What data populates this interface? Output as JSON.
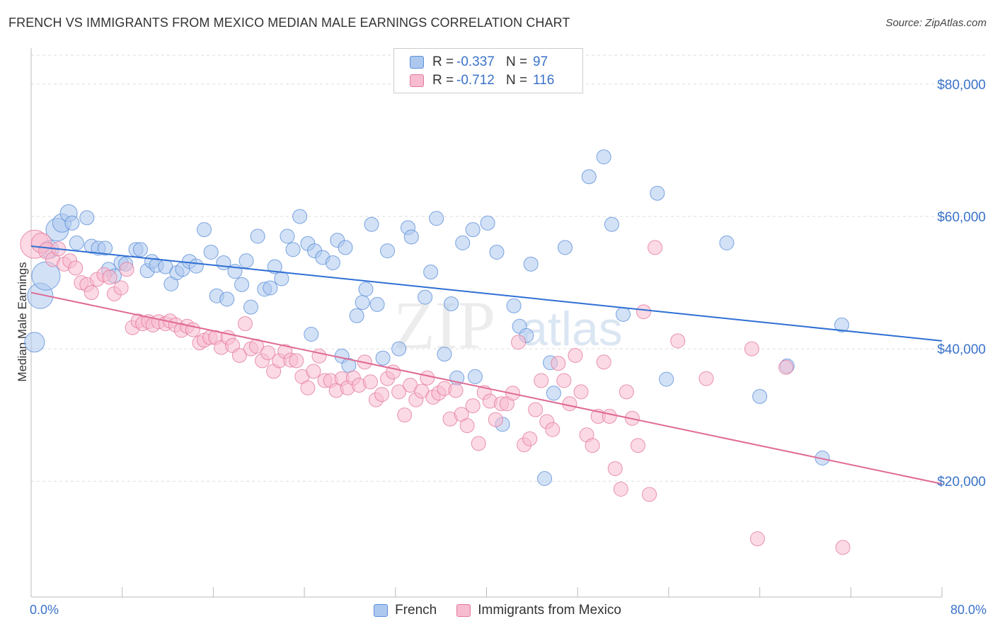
{
  "title": "FRENCH VS IMMIGRANTS FROM MEXICO MEDIAN MALE EARNINGS CORRELATION CHART",
  "source": "Source: ZipAtlas.com",
  "watermark": {
    "zip": "ZIP",
    "atlas": "atlas"
  },
  "legend": [
    {
      "name": "French",
      "r_label": "R =",
      "r_value": "-0.337",
      "n_label": "N =",
      "n_value": "97",
      "fill": "#adc8ef",
      "stroke": "#5b8fd9"
    },
    {
      "name": "Immigrants from Mexico",
      "r_label": "R =",
      "r_value": "-0.712",
      "n_label": "N =",
      "n_value": "116",
      "fill": "#f7bcd0",
      "stroke": "#e3799c"
    }
  ],
  "chart_data": {
    "type": "scatter",
    "title": "FRENCH VS IMMIGRANTS FROM MEXICO MEDIAN MALE EARNINGS CORRELATION CHART",
    "xlabel": "",
    "ylabel": "Median Male Earnings",
    "xlim": [
      0,
      80
    ],
    "ylim": [
      2500,
      85000
    ],
    "x_tick_labels": [
      "0.0%",
      "80.0%"
    ],
    "y_ticks": [
      20000,
      40000,
      60000,
      80000
    ],
    "y_tick_labels": [
      "$20,000",
      "$40,000",
      "$60,000",
      "$80,000"
    ],
    "grid": true,
    "legend_position": "top-center",
    "series": [
      {
        "name": "French",
        "color": "#5b8fd9",
        "trend": {
          "x": [
            0,
            80
          ],
          "y": [
            55500,
            41200
          ]
        },
        "points": [
          [
            0.3,
            41000,
            14
          ],
          [
            0.8,
            48000,
            18
          ],
          [
            1.3,
            51000,
            20
          ],
          [
            1.6,
            55000,
            13
          ],
          [
            2.3,
            58000,
            16
          ],
          [
            2.7,
            59000,
            13
          ],
          [
            3.3,
            60500,
            12
          ],
          [
            3.6,
            59000,
            10
          ],
          [
            4.0,
            56000,
            10
          ],
          [
            4.9,
            59800,
            10
          ],
          [
            5.3,
            55500,
            10
          ],
          [
            5.9,
            55200,
            10
          ],
          [
            6.5,
            55200,
            10
          ],
          [
            6.8,
            52000,
            10
          ],
          [
            7.3,
            51000,
            10
          ],
          [
            7.9,
            53000,
            10
          ],
          [
            8.3,
            52800,
            10
          ],
          [
            9.2,
            55000,
            10
          ],
          [
            9.6,
            55000,
            10
          ],
          [
            10.2,
            51800,
            10
          ],
          [
            10.6,
            53200,
            10
          ],
          [
            11.0,
            52600,
            10
          ],
          [
            11.8,
            52400,
            10
          ],
          [
            12.3,
            49800,
            10
          ],
          [
            12.8,
            51500,
            10
          ],
          [
            13.3,
            52000,
            10
          ],
          [
            13.9,
            53200,
            10
          ],
          [
            14.5,
            52500,
            10
          ],
          [
            15.2,
            58000,
            10
          ],
          [
            15.8,
            54600,
            10
          ],
          [
            16.3,
            48000,
            10
          ],
          [
            16.9,
            53000,
            10
          ],
          [
            17.2,
            47500,
            10
          ],
          [
            17.9,
            51700,
            10
          ],
          [
            18.5,
            49700,
            10
          ],
          [
            18.9,
            53300,
            10
          ],
          [
            19.3,
            46300,
            10
          ],
          [
            19.9,
            57000,
            10
          ],
          [
            20.5,
            49000,
            10
          ],
          [
            21.0,
            49200,
            10
          ],
          [
            21.4,
            52400,
            10
          ],
          [
            22.0,
            50600,
            10
          ],
          [
            22.5,
            57000,
            10
          ],
          [
            23.0,
            55000,
            10
          ],
          [
            23.6,
            60000,
            10
          ],
          [
            24.3,
            55900,
            10
          ],
          [
            24.6,
            42200,
            10
          ],
          [
            24.9,
            54800,
            10
          ],
          [
            25.6,
            53800,
            10
          ],
          [
            26.5,
            53000,
            10
          ],
          [
            26.9,
            56400,
            10
          ],
          [
            27.3,
            38900,
            10
          ],
          [
            27.6,
            55300,
            10
          ],
          [
            27.9,
            37500,
            10
          ],
          [
            28.6,
            45000,
            10
          ],
          [
            29.1,
            47000,
            10
          ],
          [
            29.4,
            49000,
            10
          ],
          [
            29.9,
            58800,
            10
          ],
          [
            30.4,
            46700,
            10
          ],
          [
            30.9,
            38600,
            10
          ],
          [
            31.3,
            54800,
            10
          ],
          [
            32.3,
            40000,
            10
          ],
          [
            33.1,
            58300,
            10
          ],
          [
            33.4,
            56900,
            10
          ],
          [
            34.6,
            47800,
            10
          ],
          [
            35.1,
            51600,
            10
          ],
          [
            35.6,
            59700,
            10
          ],
          [
            36.3,
            39200,
            10
          ],
          [
            36.9,
            46800,
            10
          ],
          [
            37.4,
            35600,
            10
          ],
          [
            37.9,
            56000,
            10
          ],
          [
            38.8,
            58000,
            10
          ],
          [
            39.0,
            35800,
            10
          ],
          [
            40.1,
            59000,
            10
          ],
          [
            40.9,
            54600,
            10
          ],
          [
            41.4,
            28600,
            10
          ],
          [
            42.4,
            46500,
            10
          ],
          [
            42.9,
            43400,
            10
          ],
          [
            43.5,
            42000,
            10
          ],
          [
            43.9,
            52800,
            10
          ],
          [
            45.1,
            20400,
            10
          ],
          [
            45.6,
            37900,
            10
          ],
          [
            45.9,
            33300,
            10
          ],
          [
            46.9,
            55300,
            10
          ],
          [
            49.0,
            66000,
            10
          ],
          [
            50.3,
            69000,
            10
          ],
          [
            51.0,
            58800,
            10
          ],
          [
            52.0,
            45200,
            10
          ],
          [
            55.0,
            63500,
            10
          ],
          [
            55.8,
            35400,
            10
          ],
          [
            61.1,
            56000,
            10
          ],
          [
            64.0,
            32800,
            10
          ],
          [
            66.4,
            37400,
            10
          ],
          [
            69.5,
            23500,
            10
          ],
          [
            71.2,
            43600,
            10
          ]
        ]
      },
      {
        "name": "Immigrants from Mexico",
        "color": "#e3799c",
        "trend": {
          "x": [
            0,
            80
          ],
          "y": [
            48500,
            19600
          ]
        },
        "points": [
          [
            0.3,
            55800,
            20
          ],
          [
            0.9,
            56000,
            14
          ],
          [
            1.4,
            54800,
            12
          ],
          [
            1.9,
            53500,
            10
          ],
          [
            2.4,
            55100,
            10
          ],
          [
            2.9,
            52800,
            10
          ],
          [
            3.4,
            53300,
            10
          ],
          [
            3.9,
            52200,
            10
          ],
          [
            4.4,
            50000,
            10
          ],
          [
            4.9,
            49700,
            10
          ],
          [
            5.3,
            48500,
            10
          ],
          [
            5.8,
            50500,
            10
          ],
          [
            6.4,
            51200,
            10
          ],
          [
            6.9,
            50800,
            10
          ],
          [
            7.3,
            48300,
            10
          ],
          [
            7.9,
            49200,
            10
          ],
          [
            8.4,
            52000,
            10
          ],
          [
            8.9,
            43200,
            10
          ],
          [
            9.4,
            44200,
            10
          ],
          [
            9.8,
            43800,
            10
          ],
          [
            10.3,
            44100,
            10
          ],
          [
            10.7,
            43600,
            10
          ],
          [
            11.2,
            44100,
            10
          ],
          [
            11.8,
            43800,
            10
          ],
          [
            12.2,
            44200,
            10
          ],
          [
            12.7,
            43600,
            10
          ],
          [
            13.2,
            42800,
            10
          ],
          [
            13.7,
            43400,
            10
          ],
          [
            14.2,
            42900,
            10
          ],
          [
            14.8,
            40900,
            10
          ],
          [
            15.2,
            41300,
            10
          ],
          [
            15.7,
            41700,
            10
          ],
          [
            16.2,
            41700,
            10
          ],
          [
            16.7,
            40200,
            10
          ],
          [
            17.3,
            41700,
            10
          ],
          [
            17.7,
            40500,
            10
          ],
          [
            18.3,
            39000,
            10
          ],
          [
            18.8,
            43800,
            10
          ],
          [
            19.3,
            40000,
            10
          ],
          [
            19.8,
            40400,
            10
          ],
          [
            20.3,
            38200,
            10
          ],
          [
            20.8,
            39400,
            10
          ],
          [
            21.3,
            36600,
            10
          ],
          [
            21.8,
            38200,
            10
          ],
          [
            22.3,
            39600,
            10
          ],
          [
            22.8,
            38300,
            10
          ],
          [
            23.3,
            38200,
            10
          ],
          [
            23.8,
            35800,
            10
          ],
          [
            24.3,
            34100,
            10
          ],
          [
            24.8,
            36600,
            10
          ],
          [
            25.3,
            38900,
            10
          ],
          [
            25.8,
            35200,
            10
          ],
          [
            26.3,
            35200,
            10
          ],
          [
            26.8,
            33700,
            10
          ],
          [
            27.3,
            35500,
            10
          ],
          [
            27.8,
            34100,
            10
          ],
          [
            28.3,
            35600,
            10
          ],
          [
            28.8,
            34500,
            10
          ],
          [
            29.3,
            38000,
            10
          ],
          [
            29.8,
            35000,
            10
          ],
          [
            30.3,
            32300,
            10
          ],
          [
            30.8,
            33100,
            10
          ],
          [
            31.3,
            35500,
            10
          ],
          [
            31.8,
            36500,
            10
          ],
          [
            32.3,
            33500,
            10
          ],
          [
            32.8,
            30000,
            10
          ],
          [
            33.3,
            34500,
            10
          ],
          [
            33.8,
            32300,
            10
          ],
          [
            34.3,
            33600,
            10
          ],
          [
            34.8,
            35600,
            10
          ],
          [
            35.3,
            32700,
            10
          ],
          [
            35.8,
            33300,
            10
          ],
          [
            36.3,
            34000,
            10
          ],
          [
            36.8,
            29400,
            10
          ],
          [
            37.3,
            33700,
            10
          ],
          [
            37.8,
            30100,
            10
          ],
          [
            38.3,
            28400,
            10
          ],
          [
            38.8,
            31400,
            10
          ],
          [
            39.3,
            25700,
            10
          ],
          [
            39.8,
            33400,
            10
          ],
          [
            40.3,
            32100,
            10
          ],
          [
            40.8,
            29300,
            10
          ],
          [
            41.3,
            31700,
            10
          ],
          [
            41.8,
            31700,
            10
          ],
          [
            42.3,
            33300,
            10
          ],
          [
            42.8,
            41000,
            10
          ],
          [
            43.3,
            25500,
            10
          ],
          [
            43.8,
            26400,
            10
          ],
          [
            44.3,
            30800,
            10
          ],
          [
            44.8,
            35200,
            10
          ],
          [
            45.3,
            29000,
            10
          ],
          [
            45.8,
            27800,
            10
          ],
          [
            46.3,
            37800,
            10
          ],
          [
            46.8,
            35200,
            10
          ],
          [
            47.3,
            31700,
            10
          ],
          [
            47.8,
            39000,
            10
          ],
          [
            48.3,
            33500,
            10
          ],
          [
            48.8,
            27000,
            10
          ],
          [
            49.3,
            25400,
            10
          ],
          [
            49.8,
            29800,
            10
          ],
          [
            50.3,
            38000,
            10
          ],
          [
            50.8,
            29800,
            10
          ],
          [
            51.3,
            21900,
            10
          ],
          [
            51.8,
            18800,
            10
          ],
          [
            52.3,
            33500,
            10
          ],
          [
            52.8,
            29500,
            10
          ],
          [
            53.3,
            25400,
            10
          ],
          [
            53.8,
            45600,
            10
          ],
          [
            54.3,
            18000,
            10
          ],
          [
            54.8,
            55300,
            10
          ],
          [
            56.8,
            41200,
            10
          ],
          [
            59.3,
            35500,
            10
          ],
          [
            63.3,
            40000,
            10
          ],
          [
            63.8,
            11300,
            10
          ],
          [
            66.3,
            37200,
            10
          ],
          [
            71.3,
            10000,
            10
          ]
        ]
      }
    ]
  }
}
